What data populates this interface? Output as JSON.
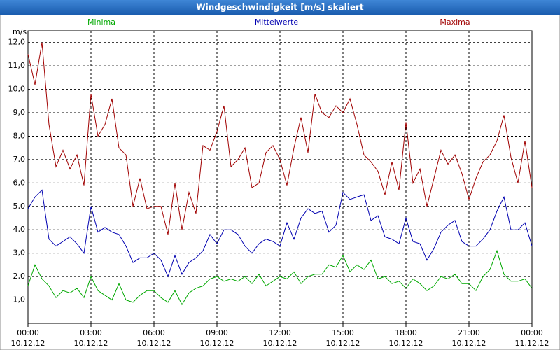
{
  "chart_data": {
    "type": "line",
    "title": "Windgeschwindigkeit [m/s] skaliert",
    "y_label": "m/s",
    "x": [
      0,
      20,
      40,
      60,
      80,
      100,
      120,
      140,
      160,
      180,
      200,
      220,
      240,
      260,
      280,
      300,
      320,
      340,
      360,
      380,
      400,
      420,
      440,
      460,
      480,
      500,
      520,
      540,
      560,
      580,
      600,
      620,
      640,
      660,
      680,
      700,
      720,
      740,
      760,
      780,
      800,
      820,
      840,
      860,
      880,
      900,
      920,
      940,
      960,
      980,
      1000,
      1020,
      1040,
      1060,
      1080,
      1100,
      1120,
      1140,
      1160,
      1180,
      1200,
      1220,
      1240,
      1260,
      1280,
      1300,
      1320,
      1340,
      1360,
      1380,
      1400,
      1420,
      1440
    ],
    "series": [
      {
        "name": "Minima",
        "color": "#00a800",
        "values": [
          1.6,
          2.5,
          1.9,
          1.6,
          1.1,
          1.4,
          1.3,
          1.5,
          1.1,
          2.0,
          1.4,
          1.2,
          1.0,
          1.7,
          1.0,
          0.9,
          1.2,
          1.4,
          1.4,
          1.1,
          0.9,
          1.4,
          0.8,
          1.3,
          1.5,
          1.6,
          1.9,
          2.0,
          1.8,
          1.9,
          1.8,
          2.0,
          1.7,
          2.1,
          1.6,
          1.8,
          2.0,
          1.9,
          2.2,
          1.7,
          2.0,
          2.1,
          2.1,
          2.5,
          2.4,
          2.9,
          2.2,
          2.5,
          2.3,
          2.7,
          1.9,
          2.0,
          1.7,
          1.8,
          1.5,
          1.9,
          1.7,
          1.4,
          1.6,
          2.0,
          1.9,
          2.1,
          1.7,
          1.7,
          1.4,
          2.0,
          2.3,
          3.1,
          2.1,
          1.8,
          1.8,
          1.9,
          1.5
        ]
      },
      {
        "name": "Mittelwerte",
        "color": "#0000b0",
        "values": [
          4.9,
          5.4,
          5.7,
          3.6,
          3.3,
          3.5,
          3.7,
          3.4,
          3.0,
          5.0,
          3.9,
          4.1,
          3.9,
          3.8,
          3.3,
          2.6,
          2.8,
          2.8,
          3.0,
          2.7,
          2.0,
          2.9,
          2.1,
          2.6,
          2.8,
          3.1,
          3.8,
          3.4,
          4.0,
          4.0,
          3.8,
          3.3,
          3.0,
          3.4,
          3.6,
          3.5,
          3.3,
          4.3,
          3.6,
          4.5,
          4.9,
          4.7,
          4.8,
          3.9,
          4.2,
          5.6,
          5.3,
          5.4,
          5.5,
          4.4,
          4.6,
          3.7,
          3.6,
          3.4,
          4.5,
          3.5,
          3.4,
          2.7,
          3.2,
          3.9,
          4.2,
          4.4,
          3.5,
          3.3,
          3.3,
          3.6,
          4.0,
          4.8,
          5.4,
          4.0,
          4.0,
          4.3,
          3.3
        ]
      },
      {
        "name": "Maxima",
        "color": "#a00000",
        "values": [
          11.5,
          10.2,
          12.0,
          8.5,
          6.7,
          7.4,
          6.6,
          7.2,
          5.9,
          9.8,
          8.0,
          8.5,
          9.6,
          7.5,
          7.2,
          5.0,
          6.2,
          4.9,
          5.0,
          5.0,
          3.8,
          6.0,
          4.0,
          5.6,
          4.7,
          7.6,
          7.4,
          8.2,
          9.3,
          6.7,
          7.0,
          7.5,
          5.8,
          6.0,
          7.3,
          7.6,
          7.0,
          5.9,
          7.5,
          8.8,
          7.3,
          9.8,
          9.0,
          8.8,
          9.3,
          9.0,
          9.6,
          8.5,
          7.2,
          6.9,
          6.5,
          5.5,
          6.9,
          5.7,
          8.6,
          6.0,
          6.6,
          5.0,
          6.2,
          7.4,
          6.8,
          7.2,
          6.4,
          5.3,
          6.2,
          6.9,
          7.2,
          7.8,
          8.9,
          7.1,
          6.0,
          7.8,
          5.8
        ]
      }
    ],
    "xlim": [
      0,
      1440
    ],
    "xticks": [
      {
        "value": 0,
        "label": "00:00"
      },
      {
        "value": 180,
        "label": "03:00"
      },
      {
        "value": 360,
        "label": "06:00"
      },
      {
        "value": 540,
        "label": "09:00"
      },
      {
        "value": 720,
        "label": "12:00"
      },
      {
        "value": 900,
        "label": "15:00"
      },
      {
        "value": 1080,
        "label": "18:00"
      },
      {
        "value": 1260,
        "label": "21:00"
      },
      {
        "value": 1440,
        "label": "00:00"
      }
    ],
    "xtick_dates": [
      "10.12.12",
      "10.12.12",
      "10.12.12",
      "10.12.12",
      "10.12.12",
      "10.12.12",
      "10.12.12",
      "10.12.12",
      "11.12.12"
    ],
    "ylim": [
      0,
      12.5
    ],
    "yticks": [
      {
        "value": 1,
        "label": "1,0"
      },
      {
        "value": 2,
        "label": "2,0"
      },
      {
        "value": 3,
        "label": "3,0"
      },
      {
        "value": 4,
        "label": "4,0"
      },
      {
        "value": 5,
        "label": "5,0"
      },
      {
        "value": 6,
        "label": "6,0"
      },
      {
        "value": 7,
        "label": "7,0"
      },
      {
        "value": 8,
        "label": "8,0"
      },
      {
        "value": 9,
        "label": "9,0"
      },
      {
        "value": 10,
        "label": "10,0"
      },
      {
        "value": 11,
        "label": "11,0"
      },
      {
        "value": 12,
        "label": "12,0"
      }
    ],
    "grid": true
  }
}
